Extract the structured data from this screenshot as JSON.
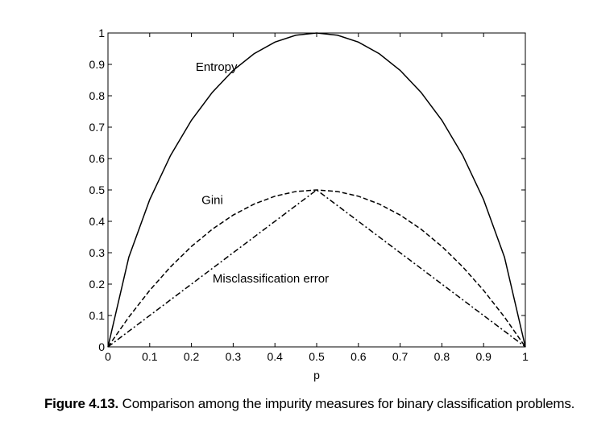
{
  "chart_data": {
    "type": "line",
    "xlabel": "p",
    "ylabel": "",
    "xlim": [
      0,
      1
    ],
    "ylim": [
      0,
      1
    ],
    "x_ticks": [
      "0",
      "0.1",
      "0.2",
      "0.3",
      "0.4",
      "0.5",
      "0.6",
      "0.7",
      "0.8",
      "0.9",
      "1"
    ],
    "y_ticks": [
      "0",
      "0.1",
      "0.2",
      "0.3",
      "0.4",
      "0.5",
      "0.6",
      "0.7",
      "0.8",
      "0.9",
      "1"
    ],
    "grid": false,
    "legend": "none",
    "series": [
      {
        "name": "Entropy",
        "style": "solid",
        "x": [
          0,
          0.05,
          0.1,
          0.15,
          0.2,
          0.25,
          0.3,
          0.35,
          0.4,
          0.45,
          0.5,
          0.55,
          0.6,
          0.65,
          0.7,
          0.75,
          0.8,
          0.85,
          0.9,
          0.95,
          1
        ],
        "values": [
          0,
          0.286,
          0.469,
          0.61,
          0.722,
          0.811,
          0.881,
          0.934,
          0.971,
          0.993,
          1,
          0.993,
          0.971,
          0.934,
          0.881,
          0.811,
          0.722,
          0.61,
          0.469,
          0.286,
          0
        ]
      },
      {
        "name": "Gini",
        "style": "dashed",
        "x": [
          0,
          0.05,
          0.1,
          0.15,
          0.2,
          0.25,
          0.3,
          0.35,
          0.4,
          0.45,
          0.5,
          0.55,
          0.6,
          0.65,
          0.7,
          0.75,
          0.8,
          0.85,
          0.9,
          0.95,
          1
        ],
        "values": [
          0,
          0.095,
          0.18,
          0.255,
          0.32,
          0.375,
          0.42,
          0.455,
          0.48,
          0.495,
          0.5,
          0.495,
          0.48,
          0.455,
          0.42,
          0.375,
          0.32,
          0.255,
          0.18,
          0.095,
          0
        ]
      },
      {
        "name": "Misclassification error",
        "style": "dash-dot",
        "x": [
          0,
          0.5,
          1
        ],
        "values": [
          0,
          0.5,
          0
        ]
      }
    ],
    "annotations": [
      {
        "text": "Entropy",
        "x": 0.26,
        "y": 0.88
      },
      {
        "text": "Gini",
        "x": 0.25,
        "y": 0.455
      },
      {
        "text": "Misclassification error",
        "x": 0.39,
        "y": 0.205
      }
    ]
  },
  "caption": {
    "label": "Figure 4.13.",
    "text": "Comparison among the impurity measures for binary classification problems."
  }
}
